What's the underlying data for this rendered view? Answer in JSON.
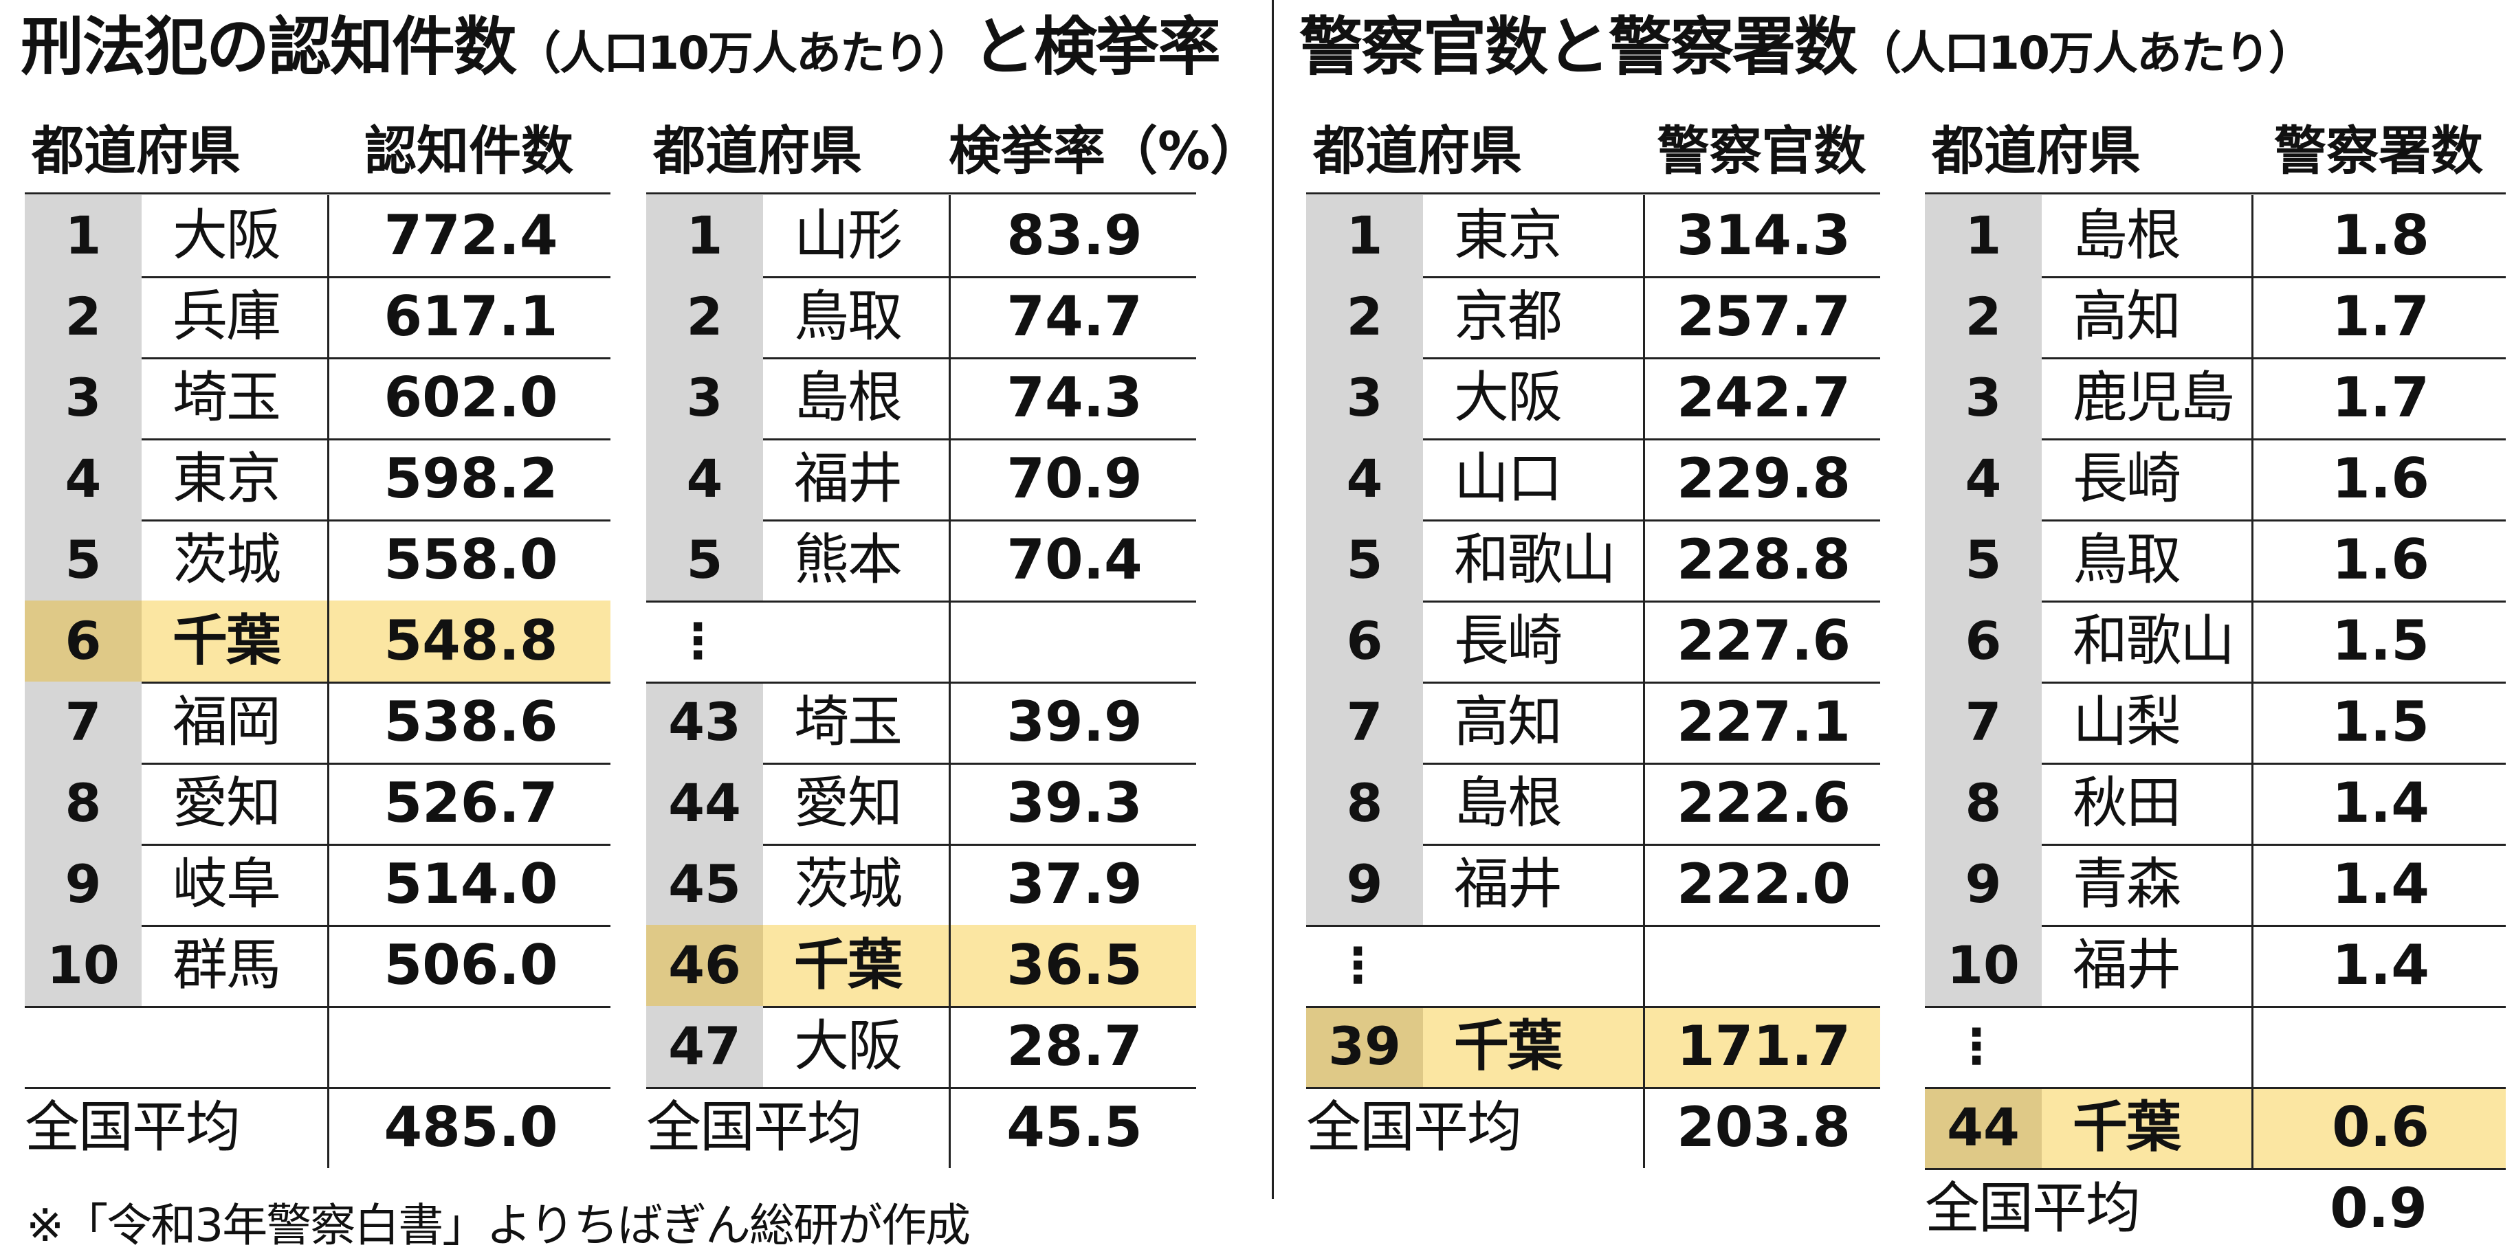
{
  "left_title": {
    "main": "刑法犯の認知件数",
    "sub": "（人口10万人あたり）",
    "end": "と検挙率"
  },
  "right_title": {
    "main": "警察官数と警察署数",
    "sub": "（人口10万人あたり）"
  },
  "tables": [
    {
      "pref_header": "都道府県",
      "value_header": "認知件数",
      "rows": [
        {
          "rank": "1",
          "pref": "大阪",
          "value": "772.4"
        },
        {
          "rank": "2",
          "pref": "兵庫",
          "value": "617.1"
        },
        {
          "rank": "3",
          "pref": "埼玉",
          "value": "602.0"
        },
        {
          "rank": "4",
          "pref": "東京",
          "value": "598.2"
        },
        {
          "rank": "5",
          "pref": "茨城",
          "value": "558.0"
        },
        {
          "rank": "6",
          "pref": "千葉",
          "value": "548.8",
          "highlight": true
        },
        {
          "rank": "7",
          "pref": "福岡",
          "value": "538.6"
        },
        {
          "rank": "8",
          "pref": "愛知",
          "value": "526.7"
        },
        {
          "rank": "9",
          "pref": "岐阜",
          "value": "514.0"
        },
        {
          "rank": "10",
          "pref": "群馬",
          "value": "506.0"
        }
      ],
      "average": {
        "label": "全国平均",
        "value": "485.0"
      }
    },
    {
      "pref_header": "都道府県",
      "value_header": "検挙率（%）",
      "rows": [
        {
          "rank": "1",
          "pref": "山形",
          "value": "83.9"
        },
        {
          "rank": "2",
          "pref": "鳥取",
          "value": "74.7"
        },
        {
          "rank": "3",
          "pref": "島根",
          "value": "74.3"
        },
        {
          "rank": "4",
          "pref": "福井",
          "value": "70.9"
        },
        {
          "rank": "5",
          "pref": "熊本",
          "value": "70.4"
        },
        {
          "rank": "43",
          "pref": "埼玉",
          "value": "39.9"
        },
        {
          "rank": "44",
          "pref": "愛知",
          "value": "39.3"
        },
        {
          "rank": "45",
          "pref": "茨城",
          "value": "37.9"
        },
        {
          "rank": "46",
          "pref": "千葉",
          "value": "36.5",
          "highlight": true
        },
        {
          "rank": "47",
          "pref": "大阪",
          "value": "28.7"
        }
      ],
      "average": {
        "label": "全国平均",
        "value": "45.5"
      }
    },
    {
      "pref_header": "都道府県",
      "value_header": "警察官数",
      "rows": [
        {
          "rank": "1",
          "pref": "東京",
          "value": "314.3"
        },
        {
          "rank": "2",
          "pref": "京都",
          "value": "257.7"
        },
        {
          "rank": "3",
          "pref": "大阪",
          "value": "242.7"
        },
        {
          "rank": "4",
          "pref": "山口",
          "value": "229.8"
        },
        {
          "rank": "5",
          "pref": "和歌山",
          "value": "228.8"
        },
        {
          "rank": "6",
          "pref": "長崎",
          "value": "227.6"
        },
        {
          "rank": "7",
          "pref": "高知",
          "value": "227.1"
        },
        {
          "rank": "8",
          "pref": "島根",
          "value": "222.6"
        },
        {
          "rank": "9",
          "pref": "福井",
          "value": "222.0"
        },
        {
          "rank": "39",
          "pref": "千葉",
          "value": "171.7",
          "highlight": true
        }
      ],
      "average": {
        "label": "全国平均",
        "value": "203.8"
      }
    },
    {
      "pref_header": "都道府県",
      "value_header": "警察署数",
      "rows": [
        {
          "rank": "1",
          "pref": "島根",
          "value": "1.8"
        },
        {
          "rank": "2",
          "pref": "高知",
          "value": "1.7"
        },
        {
          "rank": "3",
          "pref": "鹿児島",
          "value": "1.7"
        },
        {
          "rank": "4",
          "pref": "長崎",
          "value": "1.6"
        },
        {
          "rank": "5",
          "pref": "鳥取",
          "value": "1.6"
        },
        {
          "rank": "6",
          "pref": "和歌山",
          "value": "1.5"
        },
        {
          "rank": "7",
          "pref": "山梨",
          "value": "1.5"
        },
        {
          "rank": "8",
          "pref": "秋田",
          "value": "1.4"
        },
        {
          "rank": "9",
          "pref": "青森",
          "value": "1.4"
        },
        {
          "rank": "10",
          "pref": "福井",
          "value": "1.4"
        },
        {
          "rank": "44",
          "pref": "千葉",
          "value": "0.6",
          "highlight": true
        }
      ],
      "average": {
        "label": "全国平均",
        "value": "0.9"
      }
    }
  ],
  "ellipsis": "⋮",
  "colors": {
    "highlight_row": "#fbe6a2",
    "highlight_rank": "#dfc987",
    "rank_cell": "#d6d6d6"
  },
  "footnote": "※「令和3年警察白書」よりちばぎん総研が作成"
}
